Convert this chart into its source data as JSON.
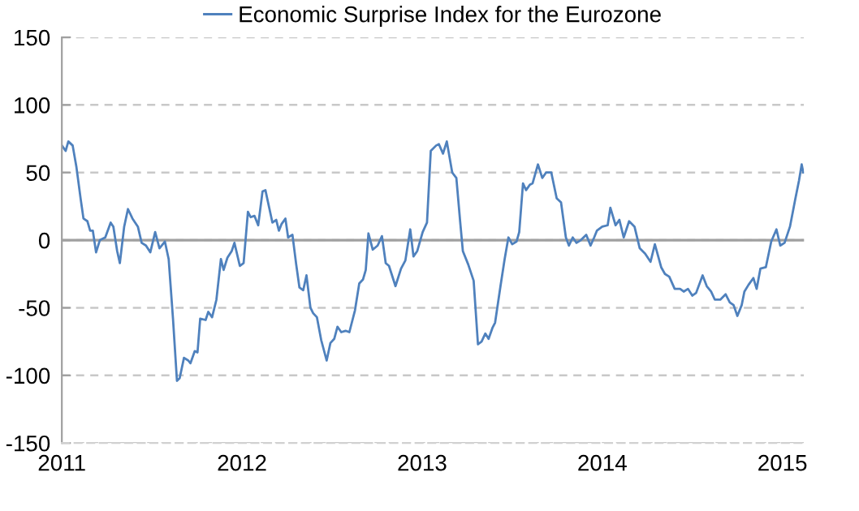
{
  "chart_data": {
    "type": "line",
    "x": [
      2011.0,
      2011.021,
      2011.036,
      2011.06,
      2011.081,
      2011.105,
      2011.12,
      2011.142,
      2011.157,
      2011.172,
      2011.19,
      2011.211,
      2011.241,
      2011.271,
      2011.286,
      2011.307,
      2011.322,
      2011.346,
      2011.367,
      2011.392,
      2011.422,
      2011.443,
      2011.467,
      2011.491,
      2011.518,
      2011.542,
      2011.572,
      2011.593,
      2011.617,
      2011.639,
      2011.654,
      2011.678,
      2011.702,
      2011.714,
      2011.738,
      2011.753,
      2011.768,
      2011.798,
      2011.813,
      2011.834,
      2011.858,
      2011.883,
      2011.898,
      2011.919,
      2011.943,
      2011.958,
      2011.988,
      2012.009,
      2012.033,
      2012.048,
      2012.069,
      2012.09,
      2012.114,
      2012.13,
      2012.151,
      2012.169,
      2012.19,
      2012.205,
      2012.22,
      2012.241,
      2012.256,
      2012.28,
      2012.301,
      2012.319,
      2012.34,
      2012.358,
      2012.38,
      2012.395,
      2012.416,
      2012.44,
      2012.47,
      2012.491,
      2012.512,
      2012.53,
      2012.551,
      2012.575,
      2012.596,
      2012.627,
      2012.651,
      2012.672,
      2012.687,
      2012.702,
      2012.726,
      2012.753,
      2012.777,
      2012.798,
      2012.816,
      2012.852,
      2012.883,
      2012.907,
      2012.934,
      2012.952,
      2012.973,
      2013.003,
      2013.027,
      2013.048,
      2013.078,
      2013.093,
      2013.116,
      2013.137,
      2013.167,
      2013.19,
      2013.211,
      2013.226,
      2013.256,
      2013.286,
      2013.31,
      2013.33,
      2013.351,
      2013.369,
      2013.39,
      2013.405,
      2013.435,
      2013.458,
      2013.479,
      2013.5,
      2013.524,
      2013.539,
      2013.56,
      2013.577,
      2013.598,
      2013.613,
      2013.643,
      2013.667,
      2013.688,
      2013.717,
      2013.747,
      2013.771,
      2013.798,
      2013.815,
      2013.836,
      2013.857,
      2013.881,
      2013.911,
      2013.935,
      2013.955,
      2013.97,
      2014.0,
      2014.03,
      2014.045,
      2014.074,
      2014.095,
      2014.119,
      2014.149,
      2014.179,
      2014.208,
      2014.238,
      2014.268,
      2014.292,
      2014.327,
      2014.348,
      2014.372,
      2014.402,
      2014.432,
      2014.452,
      2014.476,
      2014.5,
      2014.521,
      2014.557,
      2014.58,
      2014.604,
      2014.625,
      2014.655,
      2014.685,
      2014.708,
      2014.729,
      2014.75,
      2014.774,
      2014.789,
      2014.812,
      2014.839,
      2014.857,
      2014.878,
      2014.908,
      2014.938,
      2014.967,
      2014.988,
      2015.012,
      2015.042,
      2015.071,
      2015.092,
      2015.107,
      2015.116
    ],
    "series": [
      {
        "name": "Economic Surprise Index for the Eurozone",
        "color": "#4f81bd",
        "values": [
          70,
          66,
          73,
          70,
          54,
          30,
          16,
          14,
          7,
          7,
          -9,
          0,
          2,
          13,
          10,
          -8,
          -17,
          10,
          23,
          16,
          10,
          -2,
          -4,
          -9,
          6,
          -6,
          -1,
          -14,
          -58,
          -104,
          -102,
          -87,
          -89,
          -91,
          -82,
          -83,
          -58,
          -59,
          -53,
          -57,
          -44,
          -14,
          -22,
          -13,
          -8,
          -2,
          -19,
          -17,
          21,
          17,
          18,
          11,
          36,
          37,
          24,
          13,
          15,
          7,
          12,
          16,
          2,
          4,
          -18,
          -35,
          -37,
          -26,
          -50,
          -54,
          -57,
          -74,
          -89,
          -76,
          -73,
          -64,
          -68,
          -67,
          -68,
          -52,
          -32,
          -29,
          -22,
          5,
          -7,
          -4,
          3,
          -17,
          -19,
          -34,
          -21,
          -15,
          8,
          -12,
          -8,
          6,
          13,
          66,
          70,
          71,
          64,
          73,
          50,
          46,
          14,
          -8,
          -18,
          -30,
          -77,
          -75,
          -69,
          -73,
          -65,
          -61,
          -34,
          -14,
          2,
          -3,
          -1,
          6,
          42,
          37,
          41,
          42,
          56,
          46,
          50,
          50,
          31,
          28,
          2,
          -4,
          2,
          -2,
          0,
          4,
          -4,
          2,
          7,
          10,
          11,
          24,
          11,
          15,
          2,
          14,
          10,
          -6,
          -10,
          -16,
          -3,
          -20,
          -25,
          -27,
          -36,
          -36,
          -38,
          -36,
          -41,
          -39,
          -26,
          -34,
          -38,
          -44,
          -44,
          -40,
          -46,
          -48,
          -56,
          -48,
          -38,
          -33,
          -28,
          -36,
          -21,
          -20,
          -1,
          8,
          -4,
          -2,
          10,
          30,
          44,
          56,
          50
        ]
      }
    ],
    "xlim": [
      2011.0,
      2015.12
    ],
    "xticks": [
      2011,
      2012,
      2013,
      2014,
      2015
    ],
    "ylim": [
      -150,
      150
    ],
    "yticks": [
      -150,
      -100,
      -50,
      0,
      50,
      100,
      150
    ],
    "grid": "y",
    "legend": "top",
    "marker": "none",
    "line_style": "solid",
    "ref_lines": [
      {
        "axis": "y",
        "value": 0,
        "color": "#a0a0a0",
        "line_style": "solid"
      }
    ]
  }
}
